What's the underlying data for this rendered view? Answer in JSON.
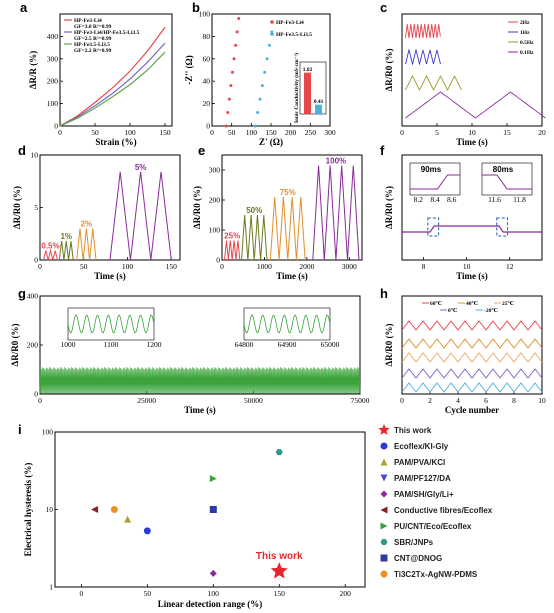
{
  "chart_data": [
    {
      "id": "a",
      "panel_label": "a",
      "type": "line",
      "xlabel": "Strain (%)",
      "ylabel": "ΔR/R (%)",
      "xlim": [
        0,
        160
      ],
      "ylim": [
        0,
        500
      ],
      "xticks": [
        0,
        50,
        100,
        150
      ],
      "yticks": [
        0,
        100,
        200,
        300,
        400
      ],
      "series": [
        {
          "name": "HP-Fe3-Li4",
          "note": "GF=3.0 R²=0.99",
          "color": "#e8474c",
          "x": [
            0,
            25,
            50,
            75,
            100,
            125,
            150
          ],
          "y": [
            0,
            45,
            105,
            170,
            245,
            335,
            440
          ]
        },
        {
          "name": "HP-Fe3-Li4/HP-Fe3.5-Li3.5",
          "note": "GF=2.5 R²=0.99",
          "color": "#7b68c8",
          "x": [
            0,
            25,
            50,
            75,
            100,
            125,
            150
          ],
          "y": [
            0,
            40,
            90,
            145,
            210,
            285,
            370
          ]
        },
        {
          "name": "HP-Fe3.5-Li3.5",
          "note": "GF=2.2 R²=0.99",
          "color": "#5fa84a",
          "x": [
            0,
            25,
            50,
            75,
            100,
            125,
            150
          ],
          "y": [
            0,
            35,
            80,
            130,
            185,
            250,
            330
          ]
        }
      ]
    },
    {
      "id": "b",
      "panel_label": "b",
      "type": "scatter",
      "xlabel": "Z' (Ω)",
      "ylabel": "-Z'' (Ω)",
      "xlim": [
        0,
        300
      ],
      "ylim": [
        0,
        100
      ],
      "xticks": [
        0,
        50,
        100,
        150,
        200,
        250,
        300
      ],
      "yticks": [
        0,
        20,
        40,
        60,
        80,
        100
      ],
      "series": [
        {
          "name": "HP-Fe3-Li4",
          "color": "#e8474c",
          "x": [
            36,
            40,
            44,
            48,
            52,
            56,
            60,
            64,
            68
          ],
          "y": [
            0,
            12,
            24,
            36,
            48,
            60,
            72,
            84,
            96
          ]
        },
        {
          "name": "HP-Fe3.5-Li3.5",
          "color": "#4fb0e0",
          "x": [
            110,
            116,
            122,
            128,
            134,
            140,
            146,
            152
          ],
          "y": [
            0,
            12,
            24,
            36,
            48,
            60,
            72,
            84
          ]
        }
      ],
      "inset": {
        "ylabel": "Ionic Conductivity (mS·cm⁻¹)",
        "bars": [
          {
            "value": 1.82,
            "label": "1.82",
            "color": "#e8474c"
          },
          {
            "value": 0.41,
            "label": "0.41",
            "color": "#4fb0e0"
          }
        ]
      }
    },
    {
      "id": "c",
      "panel_label": "c",
      "type": "line",
      "xlabel": "Time (s)",
      "ylabel": "ΔR/R0 (%)",
      "xlim": [
        0,
        20
      ],
      "yticks": [],
      "xticks": [
        0,
        5,
        10,
        15,
        20
      ],
      "series": [
        {
          "name": "2Hz",
          "color": "#e8474c",
          "freq": 2,
          "duration": 5
        },
        {
          "name": "1Hz",
          "color": "#3a3ad0",
          "freq": 1,
          "duration": 5
        },
        {
          "name": "0.5Hz",
          "color": "#9a9a30",
          "freq": 0.5,
          "duration": 8
        },
        {
          "name": "0.1Hz",
          "color": "#8a2a9a",
          "freq": 0.1,
          "duration": 20
        }
      ]
    },
    {
      "id": "d",
      "panel_label": "d",
      "type": "line",
      "xlabel": "Time (s)",
      "ylabel": "ΔR/R0 (%)",
      "xlim": [
        0,
        160
      ],
      "ylim": [
        0,
        10
      ],
      "xticks": [
        0,
        50,
        100,
        150
      ],
      "yticks": [
        0,
        5,
        10
      ],
      "series": [
        {
          "name": "0.5%",
          "color": "#e8474c"
        },
        {
          "name": "1%",
          "color": "#6a7a20"
        },
        {
          "name": "2%",
          "color": "#e0902a"
        },
        {
          "name": "5%",
          "color": "#8a2a9a"
        }
      ]
    },
    {
      "id": "e",
      "panel_label": "e",
      "type": "line",
      "xlabel": "Time (s)",
      "ylabel": "ΔR/R0 (%)",
      "xlim": [
        0,
        3300
      ],
      "ylim": [
        0,
        350
      ],
      "xticks": [
        0,
        1000,
        2000,
        3000
      ],
      "yticks": [
        0,
        100,
        200,
        300
      ],
      "series": [
        {
          "name": "25%",
          "color": "#e8474c"
        },
        {
          "name": "50%",
          "color": "#6a7a20"
        },
        {
          "name": "75%",
          "color": "#e0902a"
        },
        {
          "name": "100%",
          "color": "#8a2a9a"
        }
      ]
    },
    {
      "id": "f",
      "panel_label": "f",
      "type": "line",
      "xlabel": "Time (s)",
      "ylabel": "ΔR/R0 (%)",
      "xlim": [
        7,
        13.5
      ],
      "xticks": [
        8,
        10,
        12
      ],
      "series": [
        {
          "name": "",
          "color": "#8a2a9a"
        }
      ],
      "insets": [
        {
          "label": "90ms",
          "xticks": [
            "8.2",
            "8.4",
            "8.6"
          ]
        },
        {
          "label": "80ms",
          "xticks": [
            "11.6",
            "11.8"
          ]
        }
      ]
    },
    {
      "id": "g",
      "panel_label": "g",
      "type": "line",
      "xlabel": "Time (s)",
      "ylabel": "ΔR/R0 (%)",
      "xlim": [
        0,
        75000
      ],
      "ylim": [
        0,
        400
      ],
      "xticks": [
        0,
        25000,
        50000,
        75000
      ],
      "yticks": [
        0,
        200,
        400
      ],
      "series": [
        {
          "name": "",
          "color": "#3aa33a"
        }
      ],
      "insets": [
        {
          "xticks": [
            "1000",
            "1100",
            "1200"
          ]
        },
        {
          "xticks": [
            "64800",
            "64900",
            "65000"
          ]
        }
      ]
    },
    {
      "id": "h",
      "panel_label": "h",
      "type": "line",
      "xlabel": "Cycle number",
      "ylabel": "ΔR/R0 (%)",
      "xlim": [
        0,
        10
      ],
      "xticks": [
        0,
        2,
        4,
        6,
        8,
        10
      ],
      "series": [
        {
          "name": "60℃",
          "color": "#e8474c"
        },
        {
          "name": "40℃",
          "color": "#e0902a"
        },
        {
          "name": "25℃",
          "color": "#f0a860"
        },
        {
          "name": "0℃",
          "color": "#7b68c8"
        },
        {
          "name": "-20℃",
          "color": "#4fb0e0"
        }
      ]
    },
    {
      "id": "i",
      "panel_label": "i",
      "type": "scatter",
      "xlabel": "Linear detection range (%)",
      "ylabel": "Electrical hysteresis (%)",
      "xlim": [
        -20,
        215
      ],
      "ylim": [
        1,
        100
      ],
      "yscale": "log",
      "xticks": [
        0,
        50,
        100,
        150,
        200
      ],
      "yticks": [
        1,
        10,
        100
      ],
      "annotation": "This work",
      "series": [
        {
          "name": "This work",
          "color": "#e8272c",
          "marker": "star",
          "x": [
            150
          ],
          "y": [
            1.6
          ]
        },
        {
          "name": "Ecoflex/KI-Gly",
          "color": "#2a3ad8",
          "marker": "circle",
          "x": [
            50
          ],
          "y": [
            5.3
          ]
        },
        {
          "name": "PAM/PVA/KCl",
          "color": "#b0a030",
          "marker": "triangle",
          "x": [
            35
          ],
          "y": [
            7.5
          ]
        },
        {
          "name": "PAM/PF127/DA",
          "color": "#4a4ad0",
          "marker": "triangle-down",
          "x": [
            100
          ],
          "y": [
            10
          ]
        },
        {
          "name": "PAM/SH/Gly/Li+",
          "color": "#8a2a9a",
          "marker": "diamond",
          "x": [
            100
          ],
          "y": [
            1.5
          ]
        },
        {
          "name": "Conductive fibres/Ecoflex",
          "color": "#8a2020",
          "marker": "triangle-left",
          "x": [
            10
          ],
          "y": [
            10
          ]
        },
        {
          "name": "PU/CNT/Eco/Ecoflex",
          "color": "#3aa33a",
          "marker": "triangle-right",
          "x": [
            100
          ],
          "y": [
            25
          ]
        },
        {
          "name": "SBR/JNPs",
          "color": "#2a9a8a",
          "marker": "hexagon",
          "x": [
            150
          ],
          "y": [
            55
          ]
        },
        {
          "name": "CNT@DNOG",
          "color": "#2a3aa0",
          "marker": "square",
          "x": [
            100
          ],
          "y": [
            10
          ]
        },
        {
          "name": "Ti3C2Tx-AgNW-PDMS",
          "color": "#f09020",
          "marker": "circle",
          "x": [
            25
          ],
          "y": [
            10
          ]
        }
      ]
    }
  ]
}
